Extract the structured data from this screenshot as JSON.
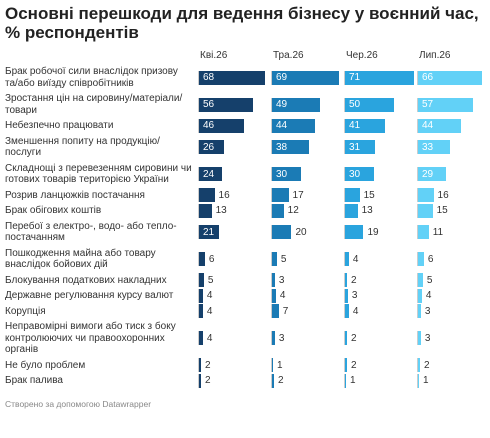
{
  "chart_data": {
    "type": "bar",
    "title": "Основні перешкоди для ведення бізнесу у воєнний час, % респондентів",
    "categories": [
      "Брак робочої сили внаслідок призову та/або виїзду співробітників",
      "Зростання цін на сировину/матеріали/товари",
      "Небезпечно працювати",
      "Зменшення попиту на продукцію/послуги",
      "Складнощі з перевезенням сировини чи готових товарів територією України",
      "Розрив ланцюжків постачання",
      "Брак обігових коштів",
      "Перебої з електро-, водо- або тепло-постачанням",
      "Пошкодження майна або товару внаслідок бойових дій",
      "Блокування податкових накладних",
      "Державне регулювання курсу валют",
      "Корупція",
      "Неправомірні вимоги або тиск з боку контролюючих чи правоохоронних органів",
      "Не було проблем",
      "Брак палива"
    ],
    "series": [
      {
        "name": "Кві.26",
        "color": "#15406b",
        "values": [
          68,
          56,
          46,
          26,
          24,
          16,
          13,
          21,
          6,
          5,
          4,
          4,
          4,
          2,
          2
        ]
      },
      {
        "name": "Тра.26",
        "color": "#1b7bb5",
        "values": [
          69,
          49,
          44,
          38,
          30,
          17,
          12,
          20,
          5,
          3,
          4,
          7,
          3,
          1,
          2
        ]
      },
      {
        "name": "Чер.26",
        "color": "#2aa4de",
        "values": [
          71,
          50,
          41,
          31,
          30,
          15,
          13,
          19,
          4,
          2,
          3,
          4,
          2,
          2,
          1
        ]
      },
      {
        "name": "Лип.26",
        "color": "#62d1f7",
        "values": [
          66,
          57,
          44,
          33,
          29,
          16,
          15,
          11,
          6,
          5,
          4,
          3,
          3,
          2,
          1
        ]
      }
    ],
    "xlim": [
      0,
      72
    ],
    "credit": "Створено за допомогою Datawrapper"
  }
}
